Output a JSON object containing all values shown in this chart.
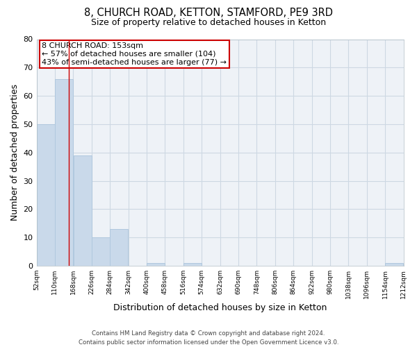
{
  "title": "8, CHURCH ROAD, KETTON, STAMFORD, PE9 3RD",
  "subtitle": "Size of property relative to detached houses in Ketton",
  "xlabel": "Distribution of detached houses by size in Ketton",
  "ylabel": "Number of detached properties",
  "bar_left_edges": [
    52,
    110,
    168,
    226,
    284,
    342,
    400,
    458,
    516,
    574,
    632,
    690,
    748,
    806,
    864,
    922,
    980,
    1038,
    1096,
    1154
  ],
  "bar_heights": [
    50,
    66,
    39,
    10,
    13,
    0,
    1,
    0,
    1,
    0,
    0,
    0,
    0,
    0,
    0,
    0,
    0,
    0,
    0,
    1
  ],
  "bin_width": 58,
  "bar_color": "#c9d9ea",
  "bar_edge_color": "#b0c8de",
  "property_line_x": 153,
  "ylim": [
    0,
    80
  ],
  "yticks": [
    0,
    10,
    20,
    30,
    40,
    50,
    60,
    70,
    80
  ],
  "x_tick_labels": [
    "52sqm",
    "110sqm",
    "168sqm",
    "226sqm",
    "284sqm",
    "342sqm",
    "400sqm",
    "458sqm",
    "516sqm",
    "574sqm",
    "632sqm",
    "690sqm",
    "748sqm",
    "806sqm",
    "864sqm",
    "922sqm",
    "980sqm",
    "1038sqm",
    "1096sqm",
    "1154sqm",
    "1212sqm"
  ],
  "x_tick_positions": [
    52,
    110,
    168,
    226,
    284,
    342,
    400,
    458,
    516,
    574,
    632,
    690,
    748,
    806,
    864,
    922,
    980,
    1038,
    1096,
    1154,
    1212
  ],
  "ann_line1": "8 CHURCH ROAD: 153sqm",
  "ann_line2": "← 57% of detached houses are smaller (104)",
  "ann_line3": "43% of semi-detached houses are larger (77) →",
  "grid_color": "#cdd8e3",
  "background_color": "#eef2f7",
  "footer_line1": "Contains HM Land Registry data © Crown copyright and database right 2024.",
  "footer_line2": "Contains public sector information licensed under the Open Government Licence v3.0."
}
